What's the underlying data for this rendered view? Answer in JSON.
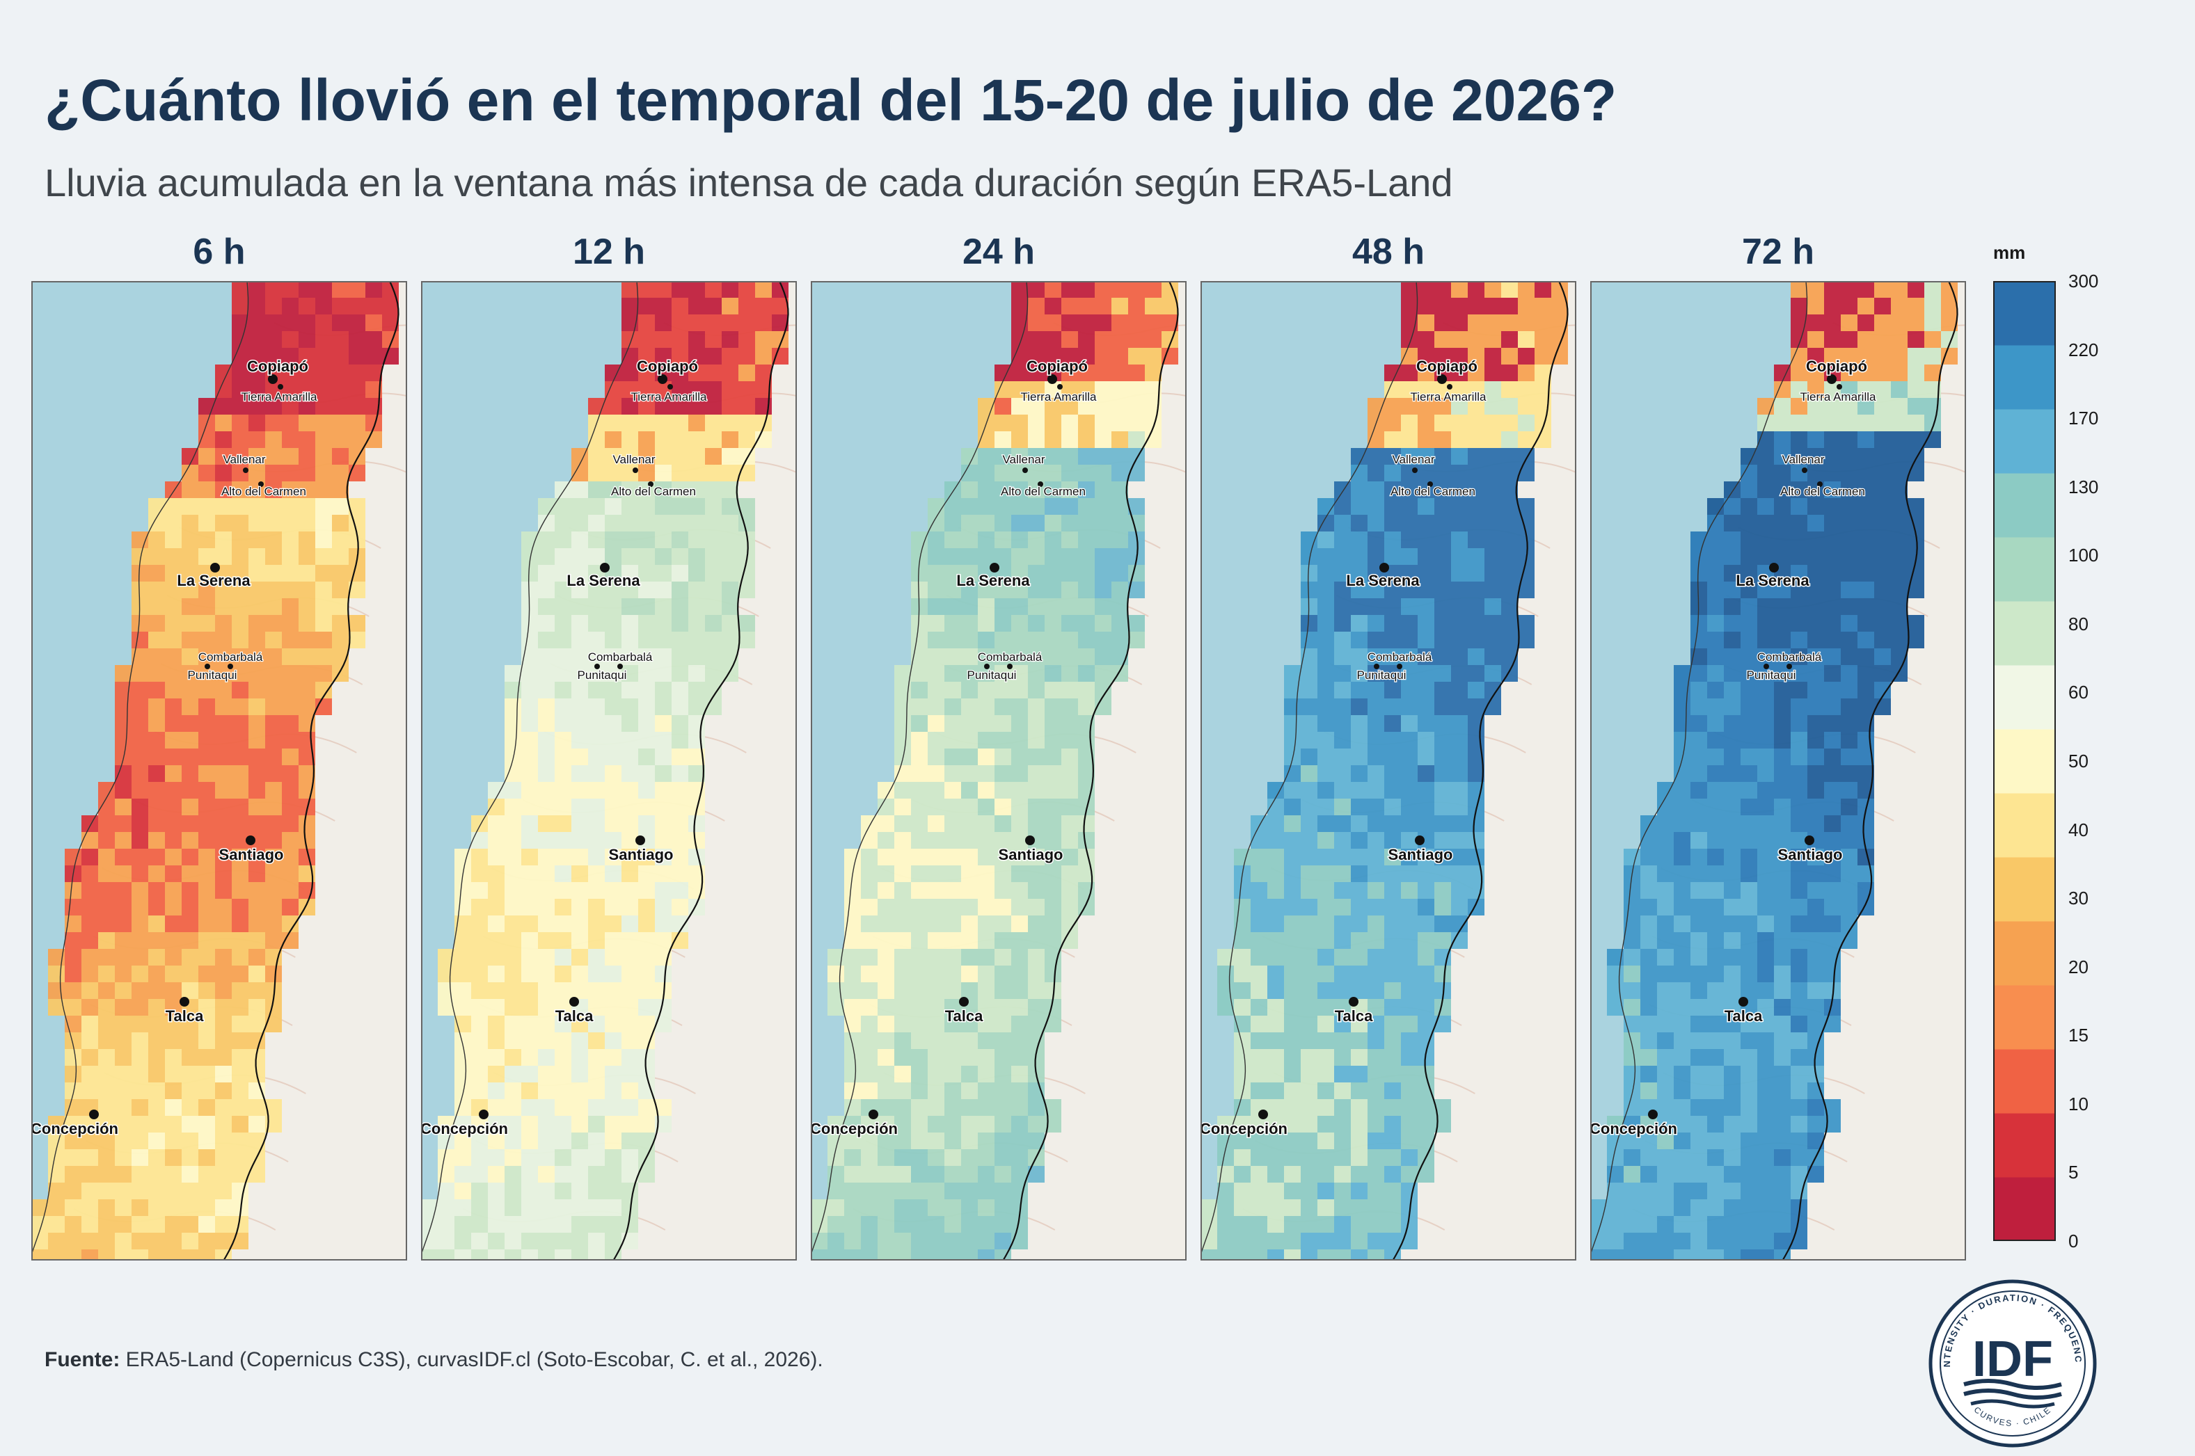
{
  "title": "¿Cuánto llovió en el temporal del 15-20 de julio de 2026?",
  "subtitle": "Lluvia acumulada en la ventana más intensa de cada duración según ERA5-Land",
  "panels": [
    {
      "label": "6 h",
      "scheme": [
        "#bf1f3d",
        "#d7323a",
        "#f06244",
        "#f6a251",
        "#f9c867",
        "#fde592",
        "#fef8c6",
        "#e6f2df"
      ]
    },
    {
      "label": "12 h",
      "scheme": [
        "#bf1f3d",
        "#e4443f",
        "#f6a251",
        "#fde592",
        "#fef8c6",
        "#e6f2df",
        "#cde8c9",
        "#b5dcc0"
      ]
    },
    {
      "label": "24 h",
      "scheme": [
        "#bf1f3d",
        "#f06244",
        "#f9c867",
        "#fef8c6",
        "#cde8c9",
        "#a8d8c1",
        "#8ccbc4",
        "#6db8cf"
      ]
    },
    {
      "label": "48 h",
      "scheme": [
        "#bf1f3d",
        "#f6a251",
        "#fde592",
        "#cde8c9",
        "#8ccbc4",
        "#5fb2d5",
        "#3d96c8",
        "#2b6fab"
      ]
    },
    {
      "label": "72 h",
      "scheme": [
        "#bf1f3d",
        "#f6a251",
        "#cde8c9",
        "#8ccbc4",
        "#5fb2d5",
        "#3d96c8",
        "#2b7ab8",
        "#1f5c98"
      ]
    }
  ],
  "cities": [
    {
      "name": "Copiapó",
      "major": true
    },
    {
      "name": "Tierra Amarilla",
      "major": false
    },
    {
      "name": "Vallenar",
      "major": false
    },
    {
      "name": "Alto del Carmen",
      "major": false
    },
    {
      "name": "La Serena",
      "major": true
    },
    {
      "name": "Combarbalá",
      "major": false
    },
    {
      "name": "Punitaqui",
      "major": false
    },
    {
      "name": "Santiago",
      "major": true
    },
    {
      "name": "Talca",
      "major": true
    },
    {
      "name": "Concepción",
      "major": true
    }
  ],
  "colorbar": {
    "unit": "mm",
    "ticks": [
      "300",
      "220",
      "170",
      "130",
      "100",
      "80",
      "60",
      "50",
      "40",
      "30",
      "20",
      "15",
      "10",
      "5",
      "0"
    ],
    "colors": [
      "#bf1f3d",
      "#d7323a",
      "#f06244",
      "#f88e4f",
      "#f6a251",
      "#f9c867",
      "#fde592",
      "#fef8c6",
      "#f1f7e6",
      "#cde8c9",
      "#a8d8c1",
      "#8ccbc4",
      "#5fb2d5",
      "#3d96c8",
      "#2b6fab"
    ]
  },
  "source": {
    "label": "Fuente:",
    "text": " ERA5-Land (Copernicus C3S), curvasIDF.cl (Soto-Escobar, C. et al., 2026)."
  },
  "logo": {
    "text": "IDF",
    "ring_text": "INTENSITY · DURATION · FREQUENCY",
    "bottom_text": "CURVES · CHILE"
  }
}
